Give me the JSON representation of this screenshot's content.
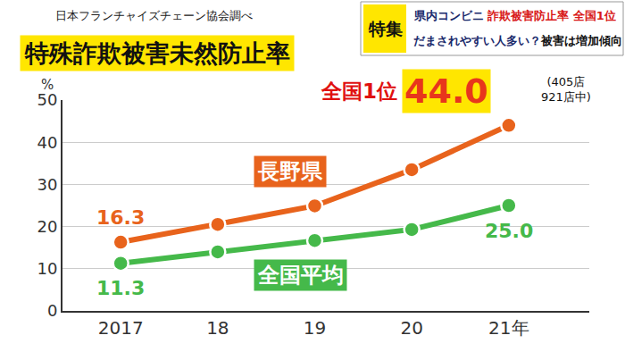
{
  "chart_data": {
    "type": "line",
    "title": "特殊詐欺被害未然防止率",
    "source": "日本フランチャイズチェーン協会調べ",
    "banner": {
      "tag": "特集",
      "lines": [
        [
          "県内コンビニ",
          "詐欺被害防止率 全国1位"
        ],
        [
          "だまされやすい人多い？",
          "被害は増加傾向"
        ]
      ]
    },
    "y_label": "%",
    "categories": [
      "2017",
      "18",
      "19",
      "20",
      "21年"
    ],
    "series": [
      {
        "name": "長野県",
        "color": "#e8631c",
        "values": [
          16.3,
          20.5,
          24.9,
          33.5,
          44.0
        ],
        "value_labels": [
          "16.3",
          null,
          null,
          null,
          "44.0"
        ]
      },
      {
        "name": "全国平均",
        "color": "#45b94a",
        "values": [
          11.3,
          14.0,
          16.7,
          19.3,
          25.0
        ],
        "value_labels": [
          "11.3",
          null,
          null,
          null,
          "25.0"
        ]
      }
    ],
    "highlight": {
      "series": "長野県",
      "category": "21年",
      "rank": "全国1位",
      "detail": [
        "(405店",
        "921店中)"
      ]
    },
    "ylim": [
      0,
      50
    ],
    "yticks": [
      0,
      10,
      20,
      30,
      40,
      50
    ],
    "grid": true,
    "marker": "circle",
    "line_style": "solid"
  }
}
